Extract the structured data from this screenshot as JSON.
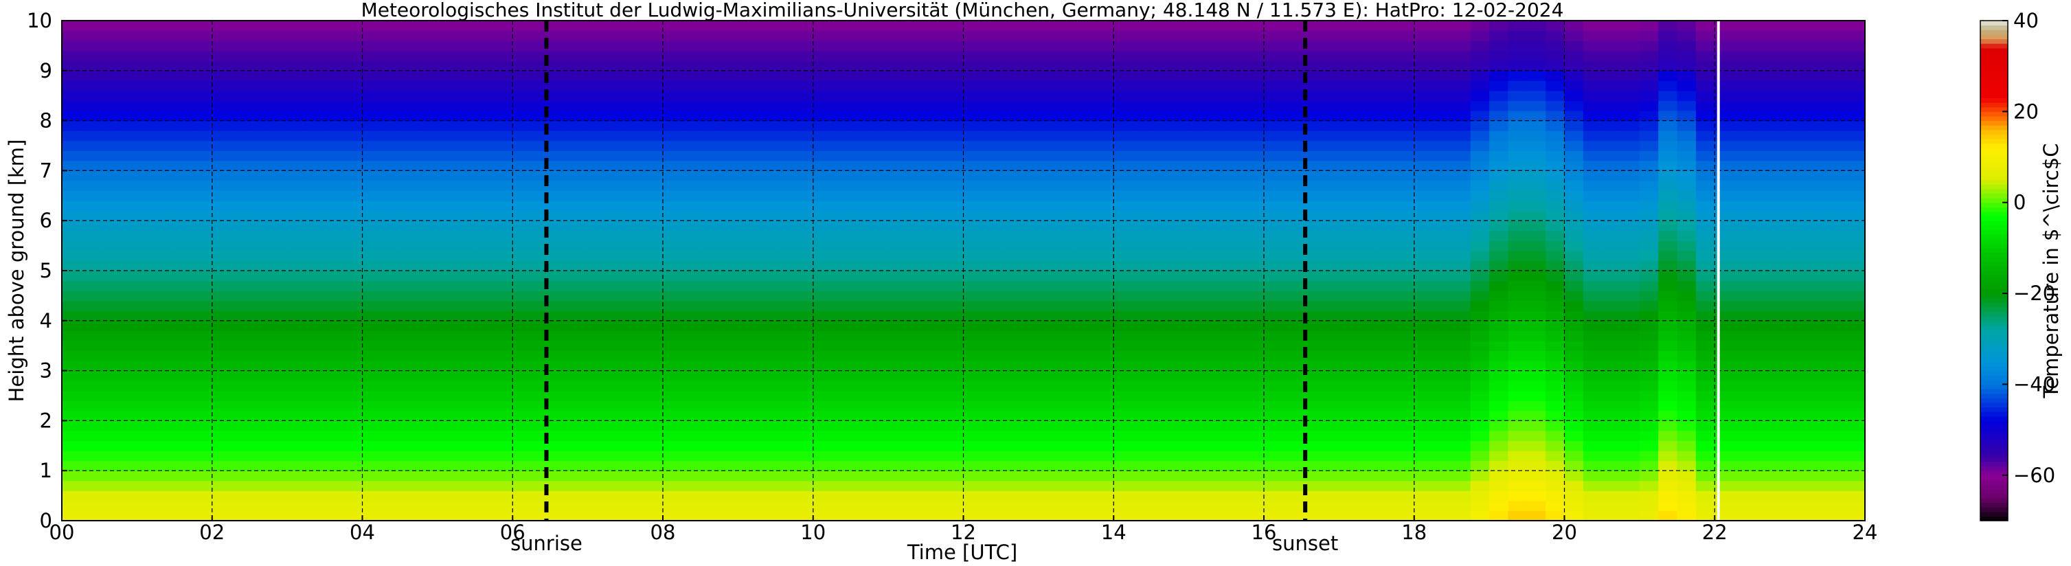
{
  "chart_data": {
    "type": "heatmap",
    "title": "Meteorologisches Institut der Ludwig-Maximilians-Universität (München, Germany; 48.148 N / 11.573 E):    HatPro: 12-02-2024",
    "xlabel": "Time [UTC]",
    "ylabel": "Height above ground [km]",
    "xlim": [
      0,
      24
    ],
    "ylim": [
      0,
      10
    ],
    "x_ticks": [
      "00",
      "02",
      "04",
      "06",
      "08",
      "10",
      "12",
      "14",
      "16",
      "18",
      "20",
      "22",
      "24"
    ],
    "y_ticks": [
      "0",
      "1",
      "2",
      "3",
      "4",
      "5",
      "6",
      "7",
      "8",
      "9",
      "10"
    ],
    "grid": true,
    "temperature_profile": [
      {
        "height_km": 0.0,
        "temp_c": 8
      },
      {
        "height_km": 0.5,
        "temp_c": 5
      },
      {
        "height_km": 1.0,
        "temp_c": 0
      },
      {
        "height_km": 2.0,
        "temp_c": -7
      },
      {
        "height_km": 3.0,
        "temp_c": -13
      },
      {
        "height_km": 4.0,
        "temp_c": -20
      },
      {
        "height_km": 5.0,
        "temp_c": -27
      },
      {
        "height_km": 6.0,
        "temp_c": -33
      },
      {
        "height_km": 7.0,
        "temp_c": -40
      },
      {
        "height_km": 8.0,
        "temp_c": -47
      },
      {
        "height_km": 9.0,
        "temp_c": -55
      },
      {
        "height_km": 10.0,
        "temp_c": -60
      }
    ],
    "warm_anomalies": [
      {
        "start": 18.7,
        "end": 20.3,
        "delta_c": 7
      },
      {
        "start": 21.1,
        "end": 21.8,
        "delta_c": 6
      }
    ],
    "markers": [
      {
        "label": "sunrise",
        "x": 6.45
      },
      {
        "label": "sunset",
        "x": 16.55
      }
    ],
    "data_end_x": 22.05,
    "colorbar": {
      "label": "Temperature in $^\\circ$C",
      "min": -70,
      "max": 40,
      "ticks": [
        "40",
        "20",
        "0",
        "−20",
        "−40",
        "−60"
      ],
      "tick_values": [
        40,
        20,
        0,
        -20,
        -40,
        -60
      ],
      "stops": [
        {
          "v": -70,
          "c": "#000000"
        },
        {
          "v": -65,
          "c": "#6a006a"
        },
        {
          "v": -60,
          "c": "#8a0094"
        },
        {
          "v": -56,
          "c": "#3a00a8"
        },
        {
          "v": -48,
          "c": "#0000dd"
        },
        {
          "v": -40,
          "c": "#0077dd"
        },
        {
          "v": -35,
          "c": "#0095d8"
        },
        {
          "v": -28,
          "c": "#00a5a5"
        },
        {
          "v": -20,
          "c": "#009a00"
        },
        {
          "v": -12,
          "c": "#00c000"
        },
        {
          "v": -3,
          "c": "#00ff00"
        },
        {
          "v": 5,
          "c": "#ddee00"
        },
        {
          "v": 12,
          "c": "#ffee00"
        },
        {
          "v": 16,
          "c": "#ffb800"
        },
        {
          "v": 19,
          "c": "#ff6600"
        },
        {
          "v": 23,
          "c": "#ee0000"
        },
        {
          "v": 34,
          "c": "#dd0000"
        },
        {
          "v": 36,
          "c": "#dd9955"
        },
        {
          "v": 38,
          "c": "#c0b080"
        },
        {
          "v": 40,
          "c": "#e8e8e0"
        }
      ]
    }
  }
}
